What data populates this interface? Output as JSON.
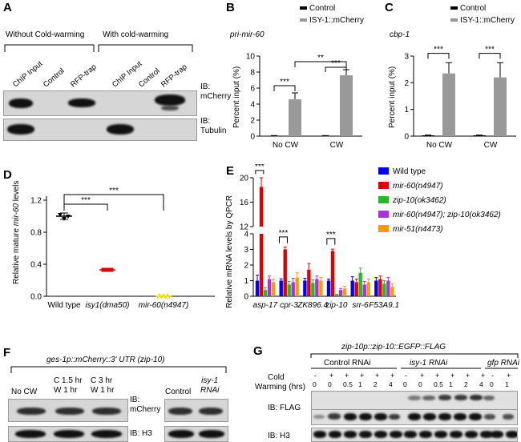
{
  "panels": {
    "A": {
      "label": "A",
      "group_without": "Without Cold-warming",
      "group_with": "With cold-warming",
      "lanes": [
        "ChIP Input",
        "Control",
        "RFP-trap",
        "ChIP Input",
        "Control",
        "RFP-trap"
      ],
      "ib_top": "IB:\nmCherry",
      "ib_bottom": "IB:\nTubulin"
    },
    "B": {
      "label": "B",
      "gene": "pri-mir-60",
      "legend": [
        "Control",
        "ISY-1::mCherry"
      ],
      "sig": [
        "***",
        "**",
        "***"
      ]
    },
    "C": {
      "label": "C",
      "gene": "cbp-1",
      "legend": [
        "Control",
        "ISY-1::mCherry"
      ],
      "sig": [
        "***",
        "***"
      ]
    },
    "D": {
      "label": "D",
      "ylabel_pre": "Relative mature ",
      "ylabel_it": "mir-60",
      "ylabel_post": " levels",
      "sig": [
        "***",
        "***"
      ]
    },
    "E": {
      "label": "E",
      "ylabel": "Relative mRNA levels by QPCR",
      "legend": [
        "Wild type",
        "mir-60(n4947)",
        "zip-10(ok3462)",
        "mir-60(n4947); zip-10(ok3462)",
        "mir-51(n4473)"
      ],
      "colors": [
        "#0000ff",
        "#e00000",
        "#22bb22",
        "#aa33dd",
        "#ff9900"
      ],
      "sig": [
        "***",
        "***",
        "***"
      ]
    },
    "F": {
      "label": "F",
      "construct": "ges-1p::mCherry::3' UTR (zip-10)",
      "lanes": [
        "No CW",
        "C 1.5 hr\nW 1 hr",
        "C 3 hr\nW 1 hr",
        "Control",
        "isy-1\nRNAi"
      ],
      "ib_top": "IB:\nmCherry",
      "ib_bottom": "IB: H3"
    },
    "G": {
      "label": "G",
      "construct": "zip-10p::zip-10::EGFP::FLAG",
      "groups": [
        "Control RNAi",
        "isy-1 RNAi",
        "gfp RNAi"
      ],
      "cold_label": "Cold",
      "warming_label": "Warming (hrs)",
      "cold_row": [
        "-",
        "+",
        "+",
        "+",
        "+",
        "+",
        "-",
        "+",
        "+",
        "+",
        "+",
        "+",
        "-",
        "+"
      ],
      "warm_row": [
        "0",
        "0",
        "0.5",
        "1",
        "2",
        "4",
        "0",
        "0",
        "0.5",
        "1",
        "2",
        "4",
        "0",
        "1"
      ],
      "ib_top": "IB: FLAG",
      "ib_bottom": "IB: H3"
    }
  },
  "chart_data": [
    {
      "type": "bar",
      "panel": "B",
      "title": "pri-mir-60",
      "categories": [
        "No CW",
        "CW"
      ],
      "series": [
        {
          "name": "Control",
          "values": [
            0.05,
            0.05
          ],
          "errors": [
            0.02,
            0.02
          ],
          "color": "#000000"
        },
        {
          "name": "ISY-1::mCherry",
          "values": [
            4.6,
            7.6
          ],
          "errors": [
            0.8,
            0.7
          ],
          "color": "#999999"
        }
      ],
      "ylabel": "Percent input (%)",
      "ylim": [
        0,
        10
      ],
      "yticks": [
        0,
        2,
        4,
        6,
        8,
        10
      ]
    },
    {
      "type": "bar",
      "panel": "C",
      "title": "cbp-1",
      "categories": [
        "No CW",
        "CW"
      ],
      "series": [
        {
          "name": "Control",
          "values": [
            0.03,
            0.03
          ],
          "errors": [
            0.01,
            0.01
          ],
          "color": "#000000"
        },
        {
          "name": "ISY-1::mCherry",
          "values": [
            2.35,
            2.2
          ],
          "errors": [
            0.4,
            0.55
          ],
          "color": "#999999"
        }
      ],
      "ylabel": "Percent input (%)",
      "ylim": [
        0,
        3
      ],
      "yticks": [
        0,
        1,
        2,
        3
      ]
    },
    {
      "type": "scatter",
      "panel": "D",
      "categories": [
        "Wild type",
        "isy1(dma50)",
        "mir-60(n4947)"
      ],
      "series": [
        {
          "name": "replicates",
          "values": [
            [
              1.02,
              0.97,
              1.0
            ],
            [
              0.33,
              0.33,
              0.33
            ],
            [
              0.0,
              0.0,
              0.0
            ]
          ],
          "means": [
            1.0,
            0.33,
            0.0
          ],
          "errors": [
            0.04,
            0.01,
            0.0
          ]
        }
      ],
      "colors": [
        "#000000",
        "#e00000",
        "#e6d800"
      ],
      "ylabel": "Relative mature mir-60 levels",
      "ylim": [
        0,
        1.2
      ],
      "yticks": [
        0.0,
        0.4,
        0.8,
        1.2
      ]
    },
    {
      "type": "bar",
      "panel": "E",
      "categories": [
        "asp-17",
        "cpr-3",
        "ZK896.4",
        "zip-10",
        "srr-6",
        "F53A9.1"
      ],
      "series": [
        {
          "name": "Wild type",
          "values": [
            1.0,
            1.0,
            1.0,
            1.0,
            1.0,
            1.0
          ],
          "errors": [
            0.35,
            0.12,
            0.15,
            0.1,
            0.25,
            0.2
          ]
        },
        {
          "name": "mir-60(n4947)",
          "values": [
            18.5,
            3.0,
            1.7,
            2.9,
            0.9,
            1.1
          ],
          "errors": [
            1.5,
            0.15,
            0.4,
            0.12,
            0.2,
            0.2
          ]
        },
        {
          "name": "zip-10(ok3462)",
          "values": [
            0.4,
            0.75,
            0.85,
            0.1,
            1.5,
            0.8
          ],
          "errors": [
            0.15,
            0.2,
            0.2,
            0.03,
            0.3,
            0.2
          ]
        },
        {
          "name": "mir-60(n4947); zip-10(ok3462)",
          "values": [
            1.1,
            0.9,
            1.1,
            0.4,
            0.75,
            1.0
          ],
          "errors": [
            0.2,
            0.25,
            0.2,
            0.1,
            0.2,
            0.2
          ]
        },
        {
          "name": "mir-51(n4473)",
          "values": [
            0.9,
            1.2,
            1.0,
            0.5,
            0.9,
            0.6
          ],
          "errors": [
            0.2,
            0.3,
            0.2,
            0.15,
            0.2,
            0.2
          ]
        }
      ],
      "ylabel": "Relative mRNA levels by QPCR",
      "yticks_low": [
        0,
        1,
        2,
        3,
        4
      ],
      "yticks_high": [
        12,
        16,
        20
      ],
      "axis_break": [
        4,
        12
      ]
    }
  ]
}
